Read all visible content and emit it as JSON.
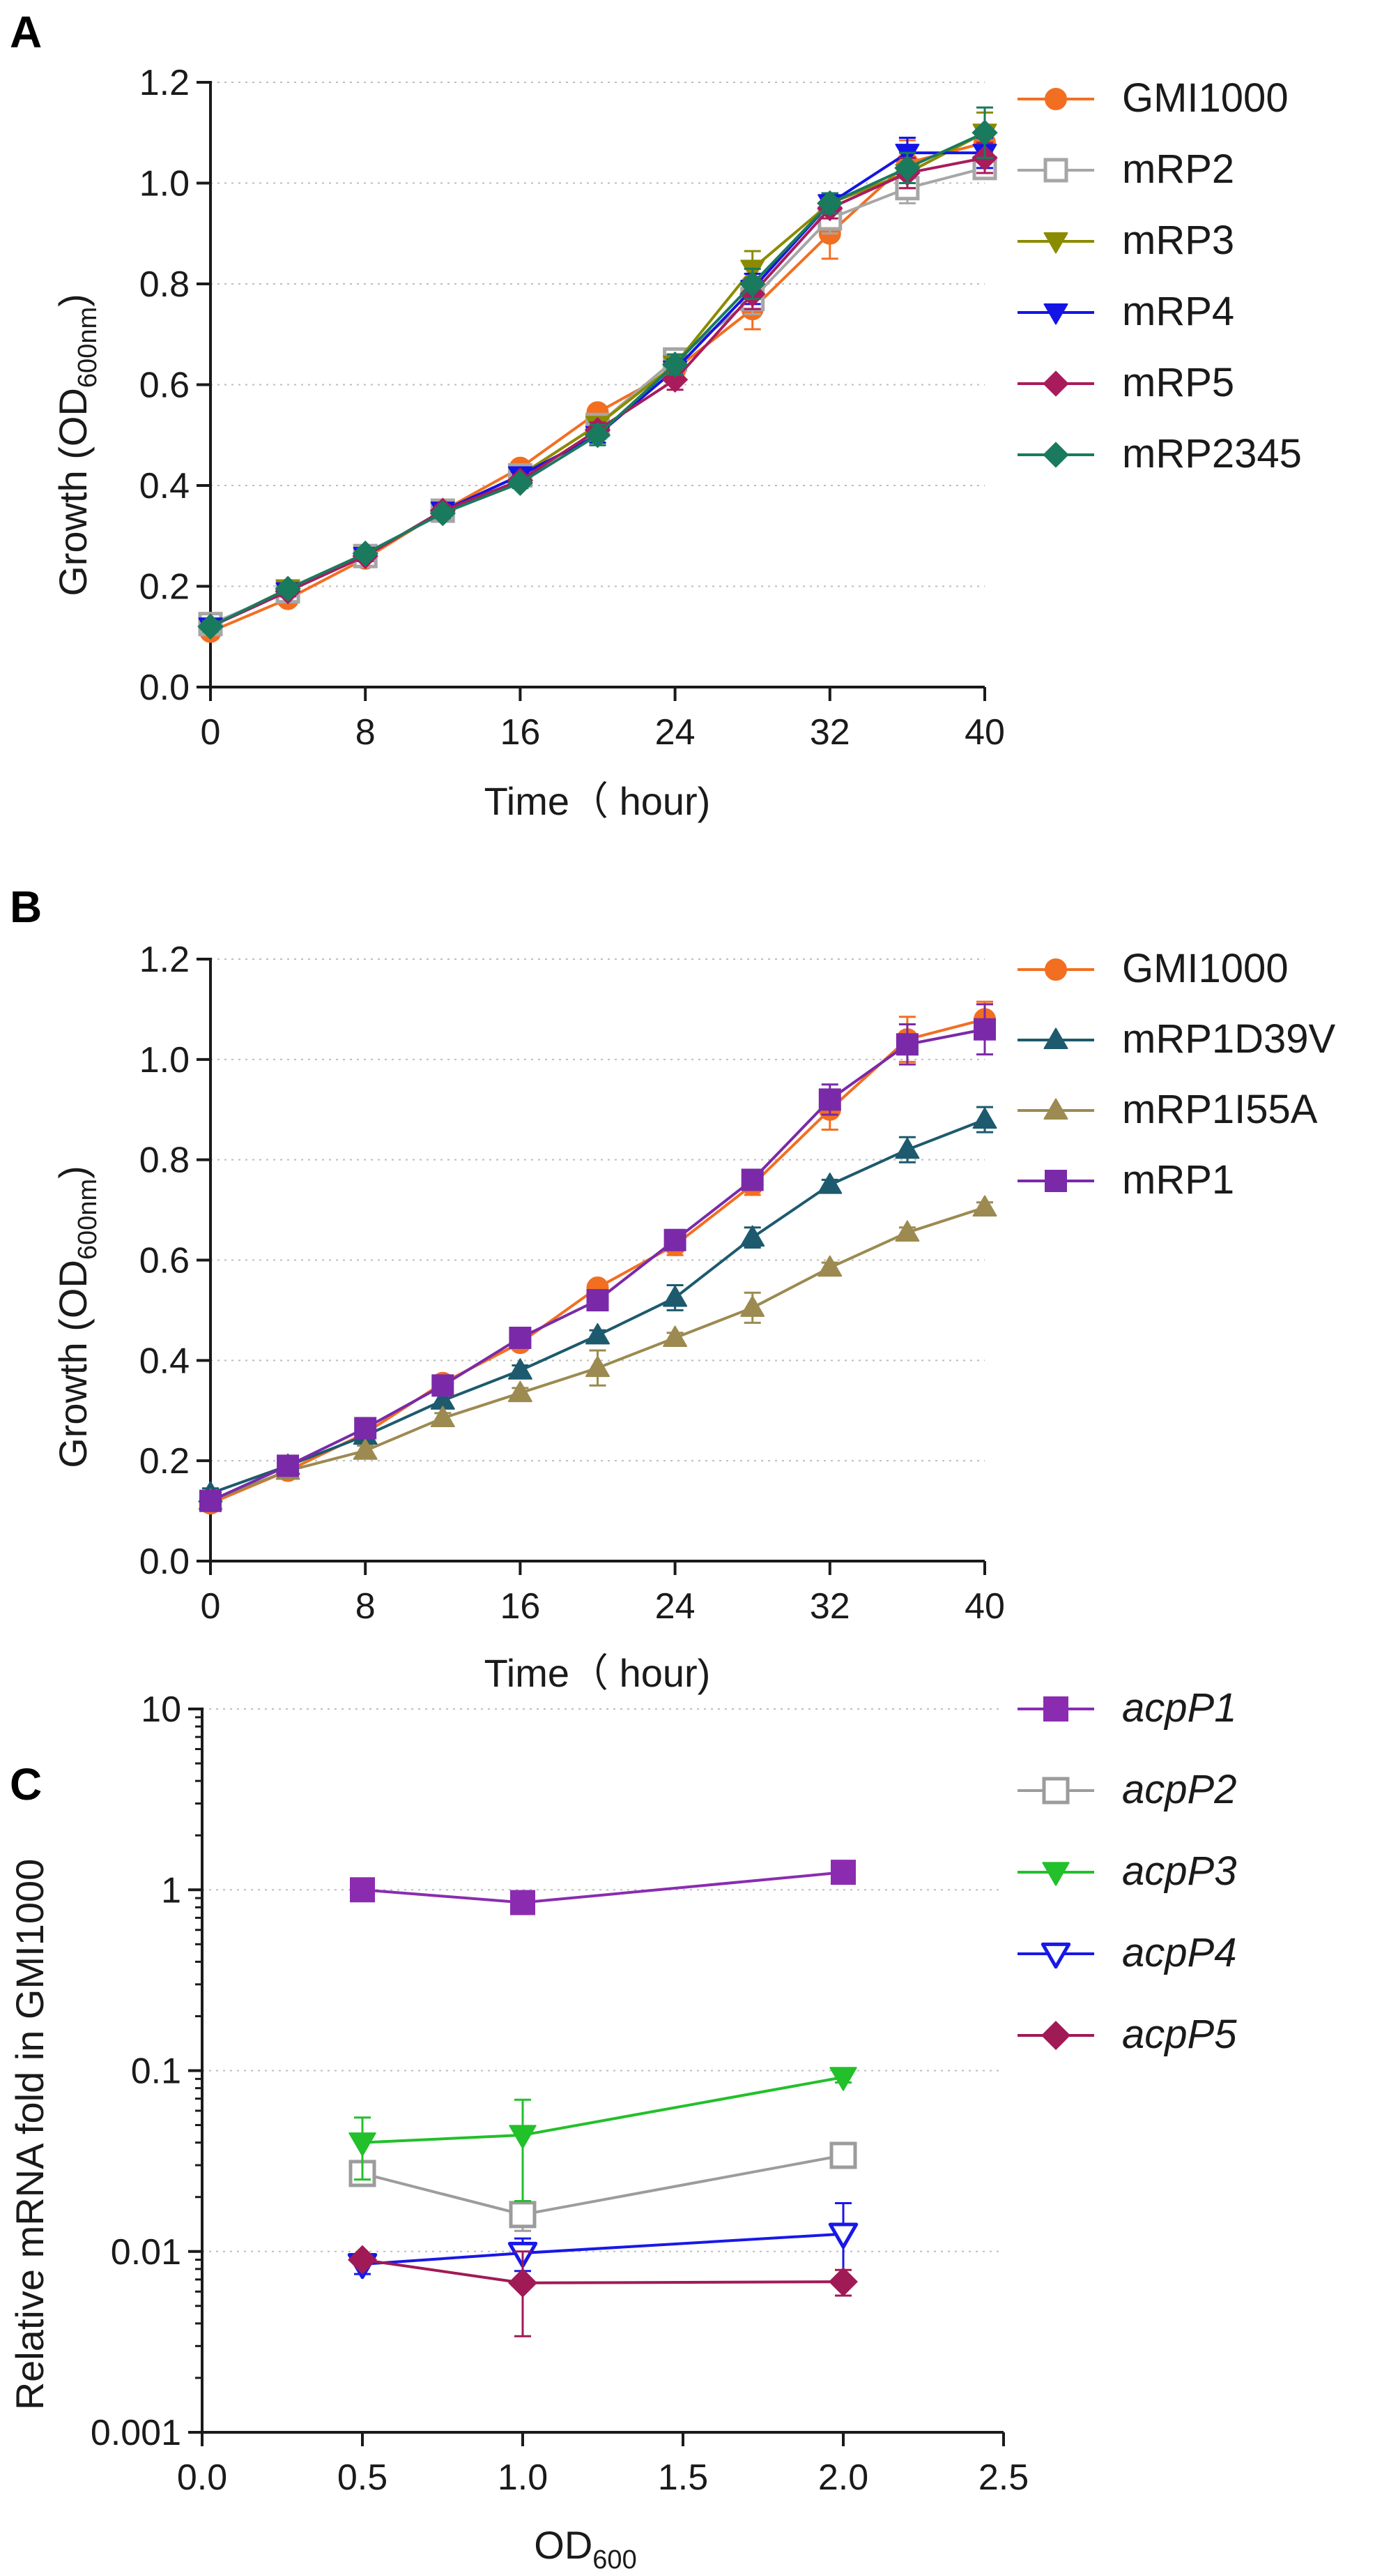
{
  "chart_data": [
    {
      "panel": "A",
      "type": "line",
      "xlabel": "Time（ hour)",
      "ylabel": "Growth (OD",
      "ylabel_sub": "600nm",
      "ylabel_close": ")",
      "xlim": [
        0,
        40
      ],
      "ylim": [
        0,
        1.2
      ],
      "yscale": "linear",
      "xticks": [
        0,
        8,
        16,
        24,
        32,
        40
      ],
      "xtick_labels": [
        "0",
        "8",
        "16",
        "24",
        "32",
        "40"
      ],
      "yticks": [
        0,
        0.2,
        0.4,
        0.6,
        0.8,
        1.0,
        1.2
      ],
      "ytick_labels": [
        "0.0",
        "0.2",
        "0.4",
        "0.6",
        "0.8",
        "1.0",
        "1.2"
      ],
      "grid": "horizontal dotted",
      "legend_position": "right",
      "x": [
        0,
        4,
        8,
        12,
        16,
        20,
        24,
        28,
        32,
        36,
        40
      ],
      "series": [
        {
          "name": "GMI1000",
          "color": "#f26f21",
          "marker": "circle",
          "values": [
            0.11,
            0.175,
            0.255,
            0.35,
            0.435,
            0.545,
            0.63,
            0.75,
            0.9,
            1.04,
            1.08
          ],
          "errors": [
            0.01,
            0.01,
            0.01,
            0.01,
            0.01,
            0.01,
            0.02,
            0.04,
            0.05,
            0.045,
            0.035
          ]
        },
        {
          "name": "mRP2",
          "color": "#a6a6a6",
          "marker": "square-open",
          "values": [
            0.125,
            0.19,
            0.26,
            0.35,
            0.42,
            0.52,
            0.65,
            0.77,
            0.93,
            0.99,
            1.03
          ],
          "errors": [
            0.01,
            0.01,
            0.01,
            0.01,
            0.01,
            0.015,
            0.02,
            0.03,
            0.03,
            0.03,
            0.02
          ]
        },
        {
          "name": "mRP3",
          "color": "#8b8b00",
          "marker": "triangle-down",
          "values": [
            0.12,
            0.195,
            0.26,
            0.35,
            0.42,
            0.52,
            0.64,
            0.83,
            0.96,
            1.02,
            1.1
          ],
          "errors": [
            0.01,
            0.01,
            0.01,
            0.01,
            0.01,
            0.015,
            0.02,
            0.035,
            0.02,
            0.03,
            0.04
          ]
        },
        {
          "name": "mRP4",
          "color": "#1414e6",
          "marker": "triangle-down",
          "values": [
            0.12,
            0.19,
            0.26,
            0.35,
            0.42,
            0.5,
            0.63,
            0.79,
            0.96,
            1.06,
            1.06
          ],
          "errors": [
            0.01,
            0.01,
            0.01,
            0.01,
            0.01,
            0.015,
            0.02,
            0.03,
            0.02,
            0.03,
            0.03
          ]
        },
        {
          "name": "mRP5",
          "color": "#a81c5c",
          "marker": "diamond",
          "values": [
            0.12,
            0.19,
            0.26,
            0.35,
            0.41,
            0.51,
            0.61,
            0.78,
            0.95,
            1.02,
            1.05
          ],
          "errors": [
            0.01,
            0.01,
            0.01,
            0.01,
            0.01,
            0.015,
            0.02,
            0.03,
            0.02,
            0.03,
            0.03
          ]
        },
        {
          "name": "mRP2345",
          "color": "#1a7a5e",
          "marker": "diamond",
          "values": [
            0.12,
            0.195,
            0.265,
            0.345,
            0.405,
            0.5,
            0.64,
            0.8,
            0.96,
            1.03,
            1.1
          ],
          "errors": [
            0.01,
            0.01,
            0.01,
            0.01,
            0.01,
            0.02,
            0.02,
            0.03,
            0.02,
            0.03,
            0.05
          ]
        }
      ]
    },
    {
      "panel": "B",
      "type": "line",
      "xlabel": "Time（ hour)",
      "ylabel": "Growth (OD",
      "ylabel_sub": "600nm",
      "ylabel_close": ")",
      "xlim": [
        0,
        40
      ],
      "ylim": [
        0,
        1.2
      ],
      "yscale": "linear",
      "xticks": [
        0,
        8,
        16,
        24,
        32,
        40
      ],
      "xtick_labels": [
        "0",
        "8",
        "16",
        "24",
        "32",
        "40"
      ],
      "yticks": [
        0,
        0.2,
        0.4,
        0.6,
        0.8,
        1.0,
        1.2
      ],
      "ytick_labels": [
        "0.0",
        "0.2",
        "0.4",
        "0.6",
        "0.8",
        "1.0",
        "1.2"
      ],
      "grid": "horizontal dotted",
      "legend_position": "right",
      "x": [
        0,
        4,
        8,
        12,
        16,
        20,
        24,
        28,
        32,
        36,
        40
      ],
      "series": [
        {
          "name": "GMI1000",
          "color": "#f26f21",
          "marker": "circle",
          "values": [
            0.115,
            0.18,
            0.255,
            0.355,
            0.435,
            0.545,
            0.63,
            0.75,
            0.9,
            1.04,
            1.08
          ],
          "errors": [
            0.01,
            0.01,
            0.01,
            0.01,
            0.01,
            0.01,
            0.02,
            0.02,
            0.04,
            0.045,
            0.035
          ]
        },
        {
          "name": "mRP1D39V",
          "color": "#1d5a6e",
          "marker": "triangle-up",
          "values": [
            0.135,
            0.19,
            0.25,
            0.32,
            0.38,
            0.45,
            0.525,
            0.645,
            0.75,
            0.82,
            0.88
          ],
          "errors": [
            0.01,
            0.01,
            0.01,
            0.01,
            0.01,
            0.01,
            0.025,
            0.02,
            0.01,
            0.025,
            0.025
          ]
        },
        {
          "name": "mRP1I55A",
          "color": "#9c8a50",
          "marker": "triangle-up",
          "values": [
            0.12,
            0.18,
            0.22,
            0.285,
            0.335,
            0.385,
            0.445,
            0.505,
            0.585,
            0.655,
            0.705
          ],
          "errors": [
            0.01,
            0.01,
            0.01,
            0.01,
            0.01,
            0.035,
            0.01,
            0.03,
            0.01,
            0.01,
            0.01
          ]
        },
        {
          "name": "mRP1",
          "color": "#7a2aa8",
          "marker": "square",
          "values": [
            0.12,
            0.19,
            0.265,
            0.35,
            0.445,
            0.52,
            0.64,
            0.76,
            0.92,
            1.03,
            1.06
          ],
          "errors": [
            0.01,
            0.01,
            0.01,
            0.01,
            0.01,
            0.02,
            0.02,
            0.02,
            0.03,
            0.04,
            0.05
          ]
        }
      ]
    },
    {
      "panel": "C",
      "type": "line",
      "xlabel": "OD",
      "xlabel_sub": "600",
      "ylabel": "Relative mRNA fold in GMI1000",
      "xlim": [
        0,
        2.5
      ],
      "ylim": [
        0.001,
        10
      ],
      "yscale": "log",
      "xticks": [
        0,
        0.5,
        1.0,
        1.5,
        2.0,
        2.5
      ],
      "xtick_labels": [
        "0.0",
        "0.5",
        "1.0",
        "1.5",
        "2.0",
        "2.5"
      ],
      "yticks": [
        0.001,
        0.01,
        0.1,
        1,
        10
      ],
      "ytick_labels": [
        "0.001",
        "0.01",
        "0.1",
        "1",
        "10"
      ],
      "grid": "horizontal dotted",
      "legend_position": "right",
      "x": [
        0.5,
        1.0,
        2.0
      ],
      "series": [
        {
          "name": "acpP1",
          "color": "#8b2cb0",
          "marker": "square",
          "values": [
            1.0,
            0.85,
            1.25
          ],
          "errors": [
            0.05,
            0.05,
            0.06
          ]
        },
        {
          "name": "acpP2",
          "color": "#9c9c9c",
          "marker": "square-open",
          "values": [
            0.027,
            0.016,
            0.034
          ],
          "errors": [
            0.003,
            0.003,
            0.003
          ]
        },
        {
          "name": "acpP3",
          "color": "#22c02a",
          "marker": "triangle-down",
          "values": [
            0.04,
            0.044,
            0.092
          ],
          "errors": [
            0.015,
            0.025,
            0.006
          ]
        },
        {
          "name": "acpP4",
          "color": "#1818e8",
          "marker": "triangle-down-open",
          "values": [
            0.0085,
            0.0098,
            0.0125
          ],
          "errors": [
            0.001,
            0.002,
            0.006
          ]
        },
        {
          "name": "acpP5",
          "color": "#a01a55",
          "marker": "diamond",
          "values": [
            0.009,
            0.0067,
            0.0068
          ],
          "errors": [
            0.0005,
            0.0033,
            0.0011
          ]
        }
      ]
    }
  ]
}
